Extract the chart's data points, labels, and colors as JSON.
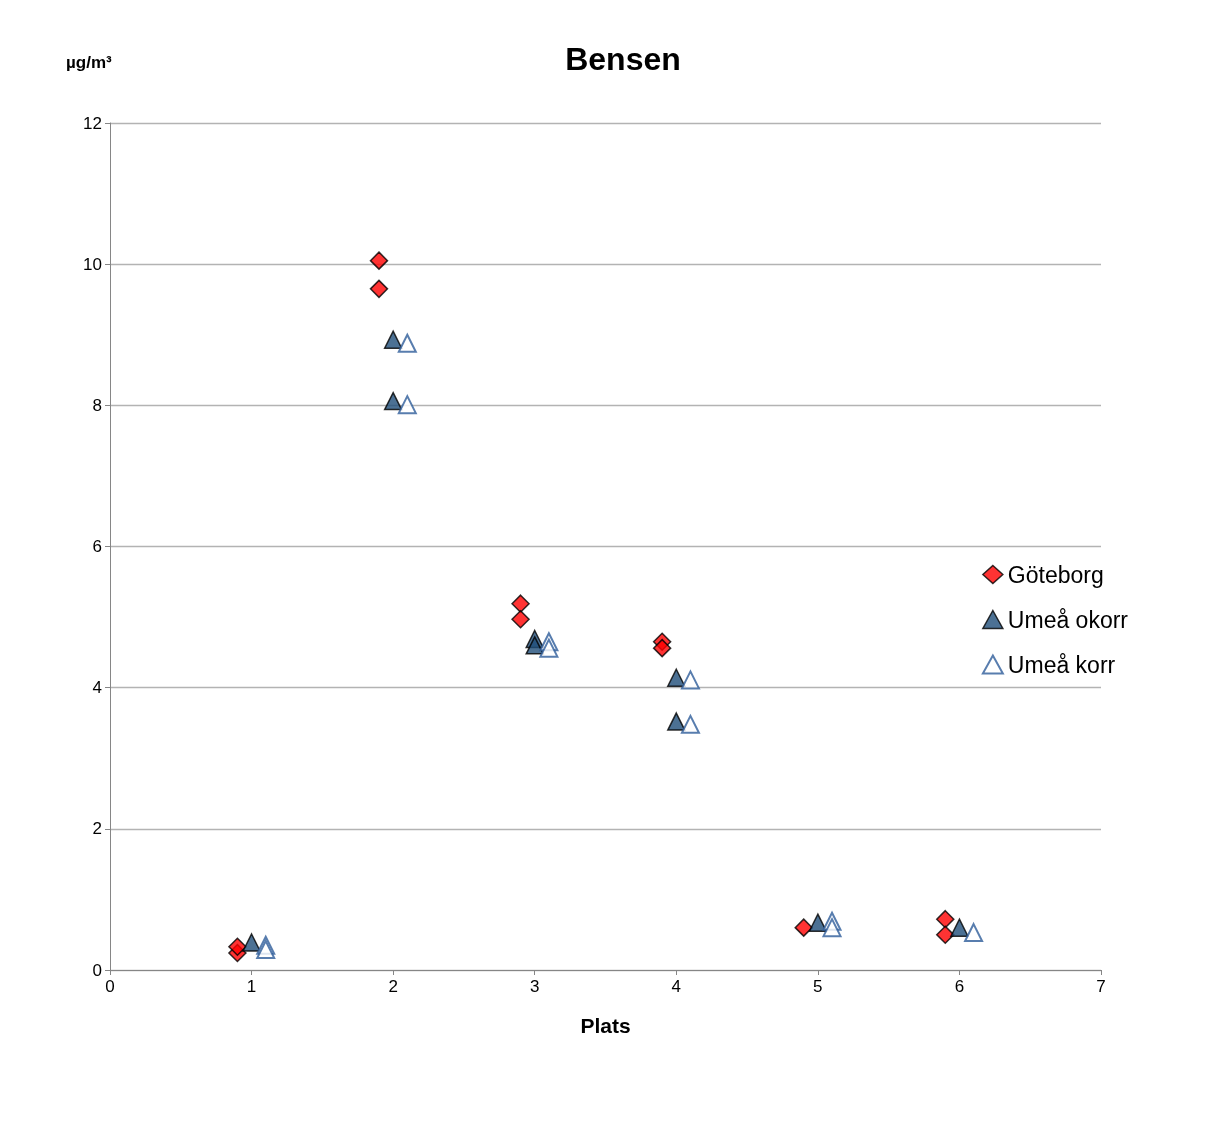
{
  "chart_data": {
    "type": "scatter",
    "title": "Bensen",
    "xlabel": "Plats",
    "ylabel": "µg/m³",
    "xlim": [
      0,
      7
    ],
    "xticks": [
      0,
      1,
      2,
      3,
      4,
      5,
      6,
      7
    ],
    "ylim": [
      0,
      12
    ],
    "yticks": [
      0,
      2,
      4,
      6,
      8,
      10,
      12
    ],
    "grid": "y",
    "legend": "right",
    "series": [
      {
        "name": "Göteborg",
        "color": "#ff0000",
        "marker": "diamond",
        "x": [
          0.9,
          0.9,
          1.9,
          1.9,
          2.9,
          2.9,
          3.9,
          3.9,
          4.9,
          5.9,
          5.9
        ],
        "values": [
          0.24,
          0.33,
          10.05,
          9.65,
          5.19,
          4.97,
          4.65,
          4.56,
          0.6,
          0.72,
          0.5
        ]
      },
      {
        "name": "Umeå okorr",
        "color": "#1f4e79",
        "marker": "triangle",
        "x": [
          1,
          2,
          2,
          3,
          3,
          4,
          4,
          5,
          6
        ],
        "values": [
          0.39,
          8.93,
          8.06,
          4.69,
          4.6,
          4.14,
          3.52,
          0.67,
          0.6
        ]
      },
      {
        "name": "Umeå korr",
        "color": "#2e5c9a",
        "marker": "triangle-open",
        "x": [
          1.1,
          1.1,
          2.1,
          2.1,
          3.1,
          3.1,
          4.1,
          4.1,
          5.1,
          5.1,
          6.1
        ],
        "values": [
          0.35,
          0.29,
          8.88,
          8.01,
          4.65,
          4.56,
          4.11,
          3.48,
          0.69,
          0.6,
          0.53
        ]
      }
    ]
  }
}
